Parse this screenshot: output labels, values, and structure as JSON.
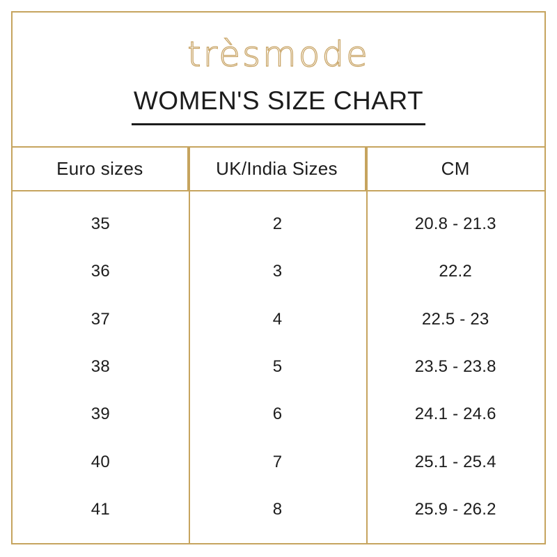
{
  "brand": {
    "logo_text": "trèsmode"
  },
  "title": "WOMEN'S SIZE CHART",
  "size_chart": {
    "columns": [
      "Euro sizes",
      "UK/India Sizes",
      "CM"
    ],
    "rows": [
      [
        "35",
        "2",
        "20.8 - 21.3"
      ],
      [
        "36",
        "3",
        "22.2"
      ],
      [
        "37",
        "4",
        "22.5 - 23"
      ],
      [
        "38",
        "5",
        "23.5 - 23.8"
      ],
      [
        "39",
        "6",
        "24.1 - 24.6"
      ],
      [
        "40",
        "7",
        "25.1 - 25.4"
      ],
      [
        "41",
        "8",
        "25.9 - 26.2"
      ]
    ]
  },
  "colors": {
    "accent_gold_border": "#c6a45e",
    "logo_gold": "#c9a567",
    "text_dark": "#1c1c1c",
    "background": "#ffffff"
  }
}
